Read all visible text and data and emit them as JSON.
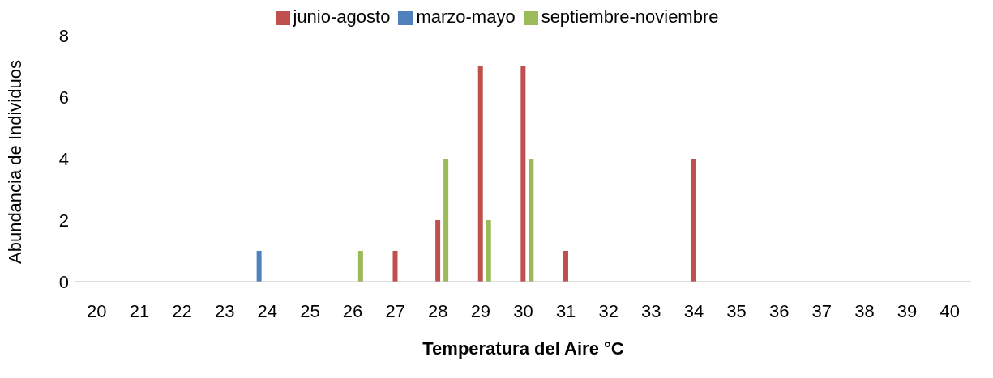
{
  "chart_data": {
    "type": "bar",
    "xlabel": "Temperatura del Aire °C",
    "ylabel": "Abundancia de Individuos",
    "categories": [
      "20",
      "21",
      "22",
      "23",
      "24",
      "25",
      "26",
      "27",
      "28",
      "29",
      "30",
      "31",
      "32",
      "33",
      "34",
      "35",
      "36",
      "37",
      "38",
      "39",
      "40"
    ],
    "series": [
      {
        "name": "marzo-mayo",
        "color": "#4f81bd",
        "values": [
          0,
          0,
          0,
          0,
          1,
          0,
          0,
          0,
          0,
          0,
          0,
          0,
          0,
          0,
          0,
          0,
          0,
          0,
          0,
          0,
          0
        ]
      },
      {
        "name": "junio-agosto",
        "color": "#c0504d",
        "values": [
          0,
          0,
          0,
          0,
          0,
          0,
          0,
          1,
          2,
          7,
          7,
          1,
          0,
          0,
          4,
          0,
          0,
          0,
          0,
          0,
          0
        ]
      },
      {
        "name": "septiembre-noviembre",
        "color": "#9bbb59",
        "values": [
          0,
          0,
          0,
          0,
          0,
          0,
          1,
          0,
          4,
          2,
          4,
          0,
          0,
          0,
          0,
          0,
          0,
          0,
          0,
          0,
          0
        ]
      }
    ],
    "ylim": [
      0,
      8
    ],
    "yticks": [
      0,
      2,
      4,
      6,
      8
    ],
    "grid": false,
    "legend": "top"
  }
}
